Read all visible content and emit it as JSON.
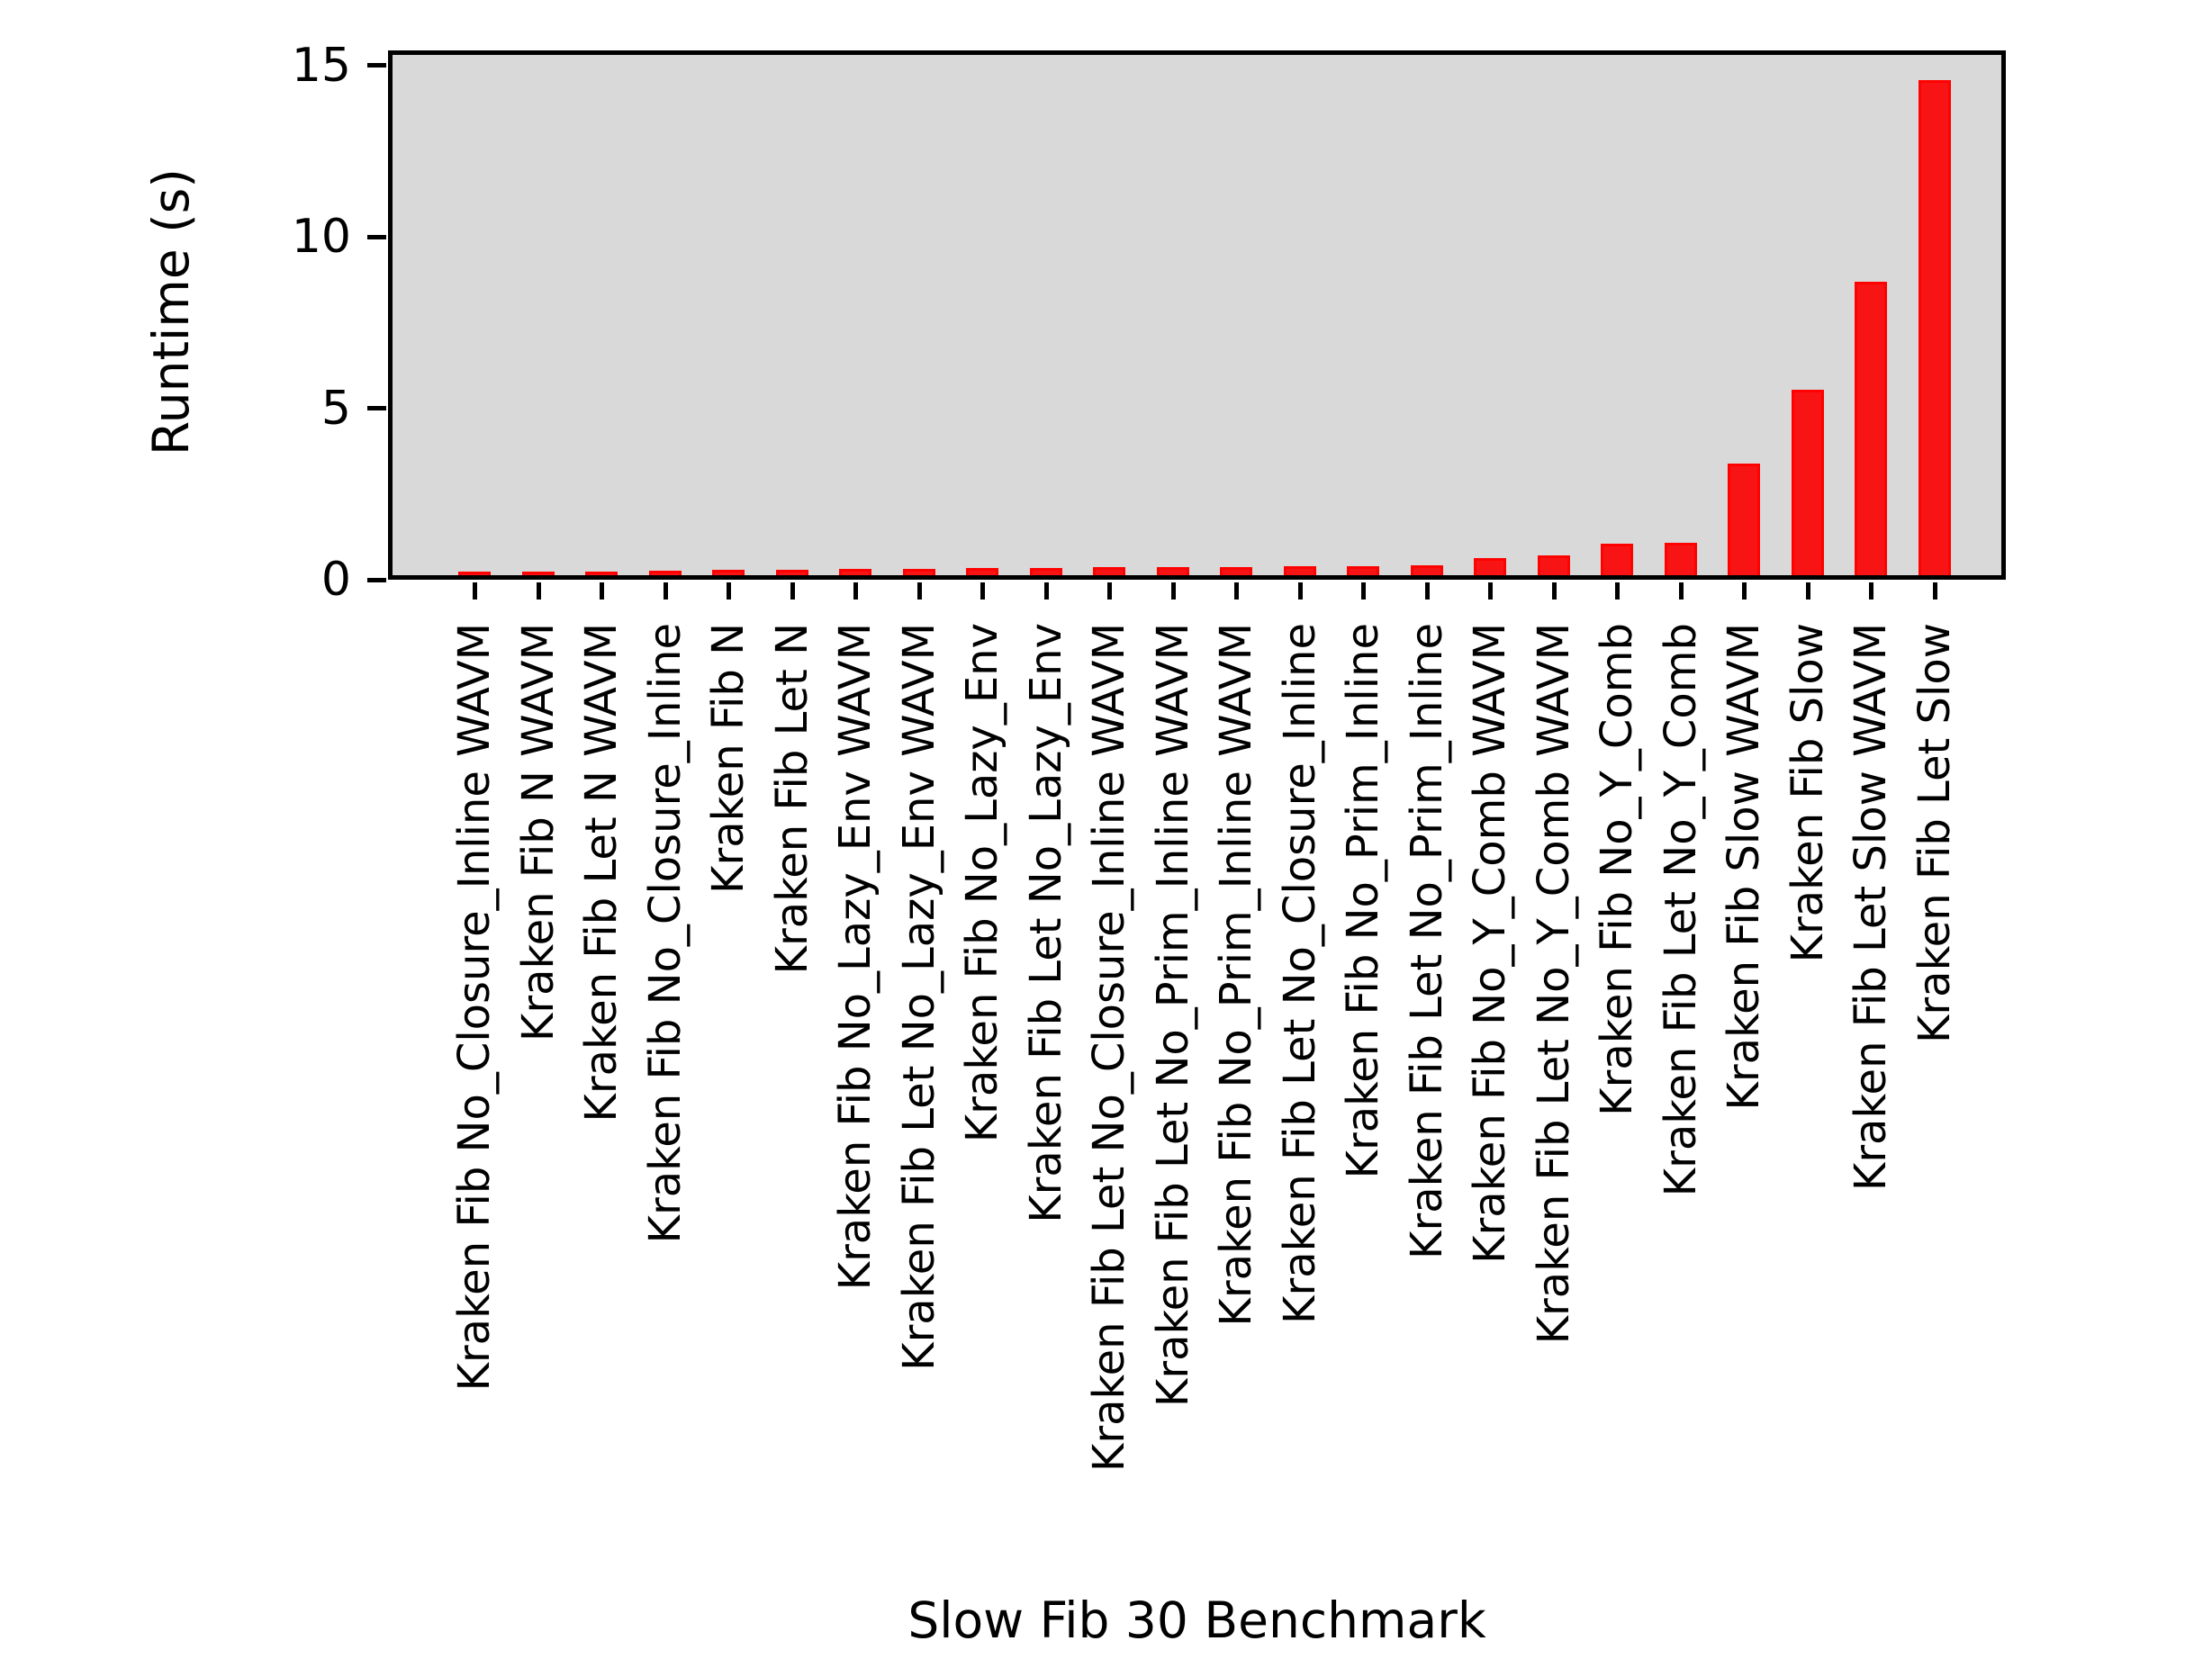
{
  "chart_data": {
    "type": "bar",
    "title": "",
    "xlabel": "Slow Fib 30 Benchmark",
    "ylabel": "Runtime (s)",
    "categories": [
      "Kraken Fib No_Closure_Inline WAVM",
      "Kraken Fib N WAVM",
      "Kraken Fib Let N WAVM",
      "Kraken Fib No_Closure_Inline",
      "Kraken Fib N",
      "Kraken Fib Let N",
      "Kraken Fib No_Lazy_Env WAVM",
      "Kraken Fib Let No_Lazy_Env WAVM",
      "Kraken Fib No_Lazy_Env",
      "Kraken Fib Let No_Lazy_Env",
      "Kraken Fib Let No_Closure_Inline WAVM",
      "Kraken Fib Let No_Prim_Inline WAVM",
      "Kraken Fib No_Prim_Inline WAVM",
      "Kraken Fib Let No_Closure_Inline",
      "Kraken Fib No_Prim_Inline",
      "Kraken Fib Let No_Prim_Inline",
      "Kraken Fib No_Y_Comb WAVM",
      "Kraken Fib Let No_Y_Comb WAVM",
      "Kraken Fib No_Y_Comb",
      "Kraken Fib Let No_Y_Comb",
      "Kraken Fib Slow WAVM",
      "Kraken Fib Slow",
      "Kraken Fib Let Slow WAVM",
      "Kraken Fib Let Slow"
    ],
    "values": [
      0.1,
      0.11,
      0.12,
      0.14,
      0.15,
      0.16,
      0.18,
      0.2,
      0.21,
      0.22,
      0.23,
      0.24,
      0.25,
      0.27,
      0.28,
      0.29,
      0.51,
      0.58,
      0.93,
      0.95,
      3.3,
      5.5,
      8.7,
      14.7
    ],
    "yticks": [
      "0",
      "5",
      "10",
      "15"
    ],
    "ytick_values": [
      0,
      5,
      10,
      15
    ],
    "ylim": [
      0,
      15.44
    ],
    "grid": false,
    "legend_position": "upper right",
    "legend_entries": [],
    "plot_bg_color": "#d9d9d9",
    "bar_color": "#f81414",
    "bar_edge_color": "#fe0202",
    "axis_color": "#000000"
  }
}
